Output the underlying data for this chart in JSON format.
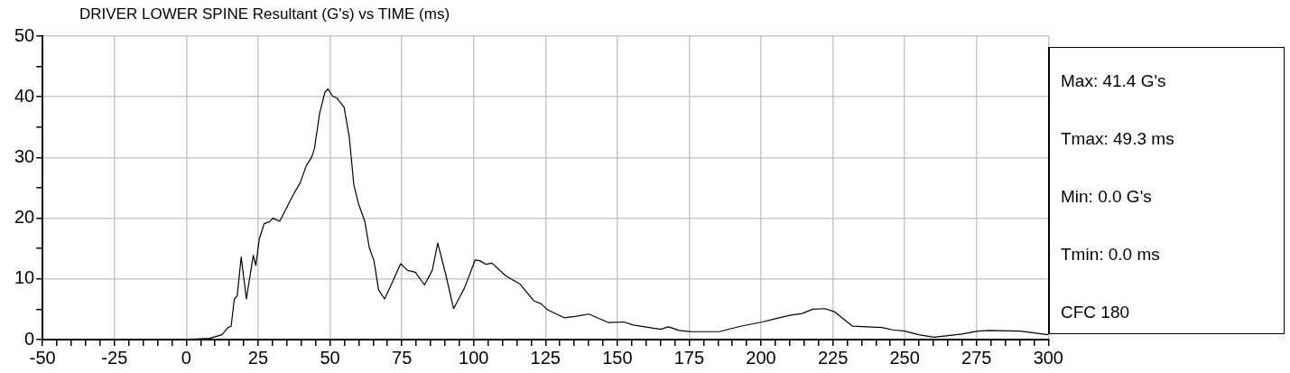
{
  "chart_data": {
    "type": "line",
    "title": "DRIVER LOWER SPINE Resultant (G's) vs TIME (ms)",
    "series": [
      {
        "color": "#000000",
        "x": [
          -50,
          -1.5,
          8.1,
          12.4,
          14.5,
          15.6,
          16.7,
          17.7,
          19.1,
          20.9,
          23.3,
          24.2,
          25.4,
          27.1,
          28.9,
          30.1,
          32.5,
          34.8,
          37.0,
          39.6,
          41.8,
          43.6,
          44.6,
          46.4,
          48.2,
          49.3,
          50.9,
          52.4,
          54.9,
          56.7,
          58.3,
          59.9,
          62.1,
          63.7,
          65.3,
          66.9,
          69.0,
          71.1,
          74.6,
          77.0,
          79.7,
          82.9,
          85.6,
          87.5,
          90.2,
          93.0,
          96.8,
          100.5,
          102.1,
          104.3,
          106.4,
          111.2,
          116.0,
          120.9,
          123.5,
          125.7,
          131.5,
          135.3,
          140.1,
          147.0,
          152.3,
          155.5,
          165.1,
          167.8,
          171.5,
          175.8,
          185.4,
          192.9,
          200.4,
          204.7,
          210.0,
          214.3,
          218.0,
          222.3,
          225.5,
          231.9,
          242.1,
          245.8,
          250.1,
          254.9,
          260.2,
          269.9,
          275.4,
          279.5,
          290.2,
          300
        ],
        "values": [
          0,
          0,
          0.2,
          0.8,
          2.0,
          2.2,
          6.7,
          7.2,
          13.6,
          6.7,
          13.9,
          12.2,
          16.6,
          19.1,
          19.4,
          20.0,
          19.5,
          21.6,
          23.7,
          25.8,
          28.7,
          30.0,
          31.5,
          37.3,
          40.7,
          41.3,
          40.1,
          39.8,
          38.3,
          33.4,
          25.5,
          22.4,
          19.5,
          15.1,
          13.0,
          8.2,
          6.7,
          8.8,
          12.5,
          11.4,
          11.1,
          9.0,
          11.4,
          15.9,
          10.9,
          5.1,
          8.5,
          13.1,
          13.0,
          12.4,
          12.6,
          10.5,
          9.2,
          6.4,
          5.9,
          4.9,
          3.6,
          3.8,
          4.2,
          2.8,
          2.9,
          2.4,
          1.7,
          2.1,
          1.5,
          1.3,
          1.3,
          2.2,
          2.9,
          3.4,
          4.0,
          4.3,
          5.0,
          5.1,
          4.6,
          2.2,
          2.0,
          1.6,
          1.4,
          0.8,
          0.4,
          0.9,
          1.4,
          1.5,
          1.4,
          0.8
        ]
      }
    ],
    "xlim": [
      -50,
      300
    ],
    "xticks": [
      -50,
      {
        "value": -45,
        "label": null
      },
      {
        "value": -40,
        "label": null
      },
      {
        "value": -35,
        "label": null
      },
      {
        "value": -30,
        "label": null
      },
      -25,
      {
        "value": -20,
        "label": null
      },
      {
        "value": -15,
        "label": null
      },
      {
        "value": -10,
        "label": null
      },
      {
        "value": -5,
        "label": null
      },
      0,
      {
        "value": 5,
        "label": null
      },
      {
        "value": 10,
        "label": null
      },
      {
        "value": 15,
        "label": null
      },
      {
        "value": 20,
        "label": null
      },
      25,
      {
        "value": 30,
        "label": null
      },
      {
        "value": 35,
        "label": null
      },
      {
        "value": 40,
        "label": null
      },
      {
        "value": 45,
        "label": null
      },
      50,
      {
        "value": 55,
        "label": null
      },
      {
        "value": 60,
        "label": null
      },
      {
        "value": 65,
        "label": null
      },
      {
        "value": 70,
        "label": null
      },
      75,
      {
        "value": 80,
        "label": null
      },
      {
        "value": 85,
        "label": null
      },
      {
        "value": 90,
        "label": null
      },
      {
        "value": 95,
        "label": null
      },
      100,
      {
        "value": 105,
        "label": null
      },
      {
        "value": 110,
        "label": null
      },
      {
        "value": 115,
        "label": null
      },
      {
        "value": 120,
        "label": null
      },
      125,
      {
        "value": 130,
        "label": null
      },
      {
        "value": 135,
        "label": null
      },
      {
        "value": 140,
        "label": null
      },
      {
        "value": 145,
        "label": null
      },
      150,
      {
        "value": 155,
        "label": null
      },
      {
        "value": 160,
        "label": null
      },
      {
        "value": 165,
        "label": null
      },
      {
        "value": 170,
        "label": null
      },
      175,
      {
        "value": 180,
        "label": null
      },
      {
        "value": 185,
        "label": null
      },
      {
        "value": 190,
        "label": null
      },
      {
        "value": 195,
        "label": null
      },
      200,
      {
        "value": 205,
        "label": null
      },
      {
        "value": 210,
        "label": null
      },
      {
        "value": 215,
        "label": null
      },
      {
        "value": 220,
        "label": null
      },
      225,
      {
        "value": 230,
        "label": null
      },
      {
        "value": 235,
        "label": null
      },
      {
        "value": 240,
        "label": null
      },
      {
        "value": 245,
        "label": null
      },
      250,
      {
        "value": 255,
        "label": null
      },
      {
        "value": 260,
        "label": null
      },
      {
        "value": 265,
        "label": null
      },
      {
        "value": 270,
        "label": null
      },
      275,
      {
        "value": 280,
        "label": null
      },
      {
        "value": 285,
        "label": null
      },
      {
        "value": 290,
        "label": null
      },
      {
        "value": 295,
        "label": null
      },
      300
    ],
    "ylim": [
      0,
      50
    ],
    "yticks": [
      0,
      {
        "value": 5,
        "label": null
      },
      10,
      {
        "value": 15,
        "label": null
      },
      20,
      {
        "value": 25,
        "label": null
      },
      30,
      {
        "value": 35,
        "label": null
      },
      40,
      {
        "value": 45,
        "label": null
      },
      50
    ],
    "grid": true,
    "marker": "none",
    "line_style": "solid",
    "annotations": [
      "Max: 41.4 G's",
      "Tmax: 49.3 ms",
      "Min: 0.0 G's",
      "Tmin: 0.0 ms",
      "CFC 180"
    ]
  }
}
